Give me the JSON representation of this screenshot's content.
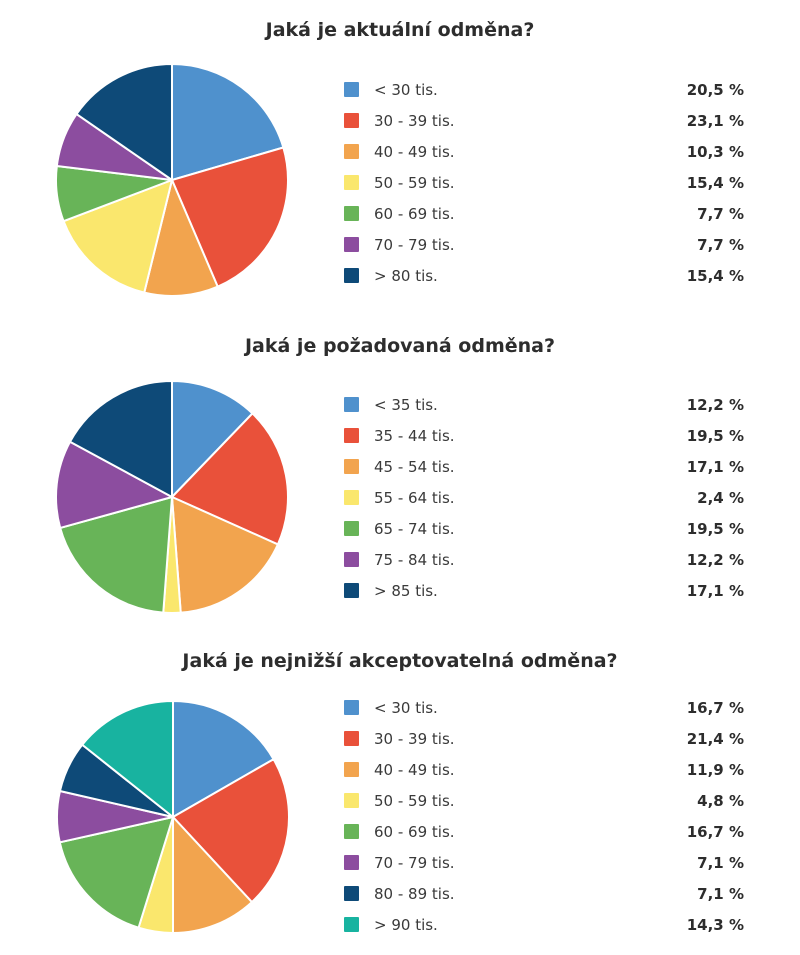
{
  "page": {
    "background": "#ffffff",
    "text_color": "#2d2d2d"
  },
  "palette": [
    "#4F91CD",
    "#E9513A",
    "#F2A44E",
    "#FAE76D",
    "#68B458",
    "#8C4D9F",
    "#0E4A78",
    "#18B3A0"
  ],
  "chart_data": [
    {
      "type": "pie",
      "title": "Jaká je aktuální odměna?",
      "categories": [
        "< 30 tis.",
        "30 - 39 tis.",
        "40 - 49 tis.",
        "50 - 59 tis.",
        "60 - 69 tis.",
        "70 - 79 tis.",
        "> 80 tis."
      ],
      "values": [
        20.5,
        23.1,
        10.3,
        15.4,
        7.7,
        7.7,
        15.4
      ],
      "value_labels": [
        "20,5 %",
        "23,1 %",
        "10,3 %",
        "15,4 %",
        "7,7 %",
        "7,7 %",
        "15,4 %"
      ],
      "colors": [
        "#4F91CD",
        "#E9513A",
        "#F2A44E",
        "#FAE76D",
        "#68B458",
        "#8C4D9F",
        "#0E4A78"
      ],
      "legend_position": "right",
      "start_angle": "top",
      "direction": "clockwise"
    },
    {
      "type": "pie",
      "title": "Jaká je požadovaná odměna?",
      "categories": [
        "< 35 tis.",
        "35 - 44 tis.",
        "45 - 54 tis.",
        "55 - 64 tis.",
        "65 - 74 tis.",
        "75 - 84 tis.",
        "> 85 tis."
      ],
      "values": [
        12.2,
        19.5,
        17.1,
        2.4,
        19.5,
        12.2,
        17.1
      ],
      "value_labels": [
        "12,2 %",
        "19,5 %",
        "17,1 %",
        "2,4 %",
        "19,5 %",
        "12,2 %",
        "17,1 %"
      ],
      "colors": [
        "#4F91CD",
        "#E9513A",
        "#F2A44E",
        "#FAE76D",
        "#68B458",
        "#8C4D9F",
        "#0E4A78"
      ],
      "legend_position": "right",
      "start_angle": "top",
      "direction": "clockwise"
    },
    {
      "type": "pie",
      "title": "Jaká je nejnižší akceptovatelná odměna?",
      "categories": [
        "< 30 tis.",
        "30 - 39 tis.",
        "40 - 49 tis.",
        "50 - 59 tis.",
        "60 - 69 tis.",
        "70 - 79 tis.",
        "80 - 89 tis.",
        "> 90 tis."
      ],
      "values": [
        16.7,
        21.4,
        11.9,
        4.8,
        16.7,
        7.1,
        7.1,
        14.3
      ],
      "value_labels": [
        "16,7 %",
        "21,4 %",
        "11,9 %",
        "4,8 %",
        "16,7 %",
        "7,1 %",
        "7,1 %",
        "14,3 %"
      ],
      "colors": [
        "#4F91CD",
        "#E9513A",
        "#F2A44E",
        "#FAE76D",
        "#68B458",
        "#8C4D9F",
        "#0E4A78",
        "#18B3A0"
      ],
      "legend_position": "right",
      "start_angle": "top",
      "direction": "clockwise"
    }
  ]
}
